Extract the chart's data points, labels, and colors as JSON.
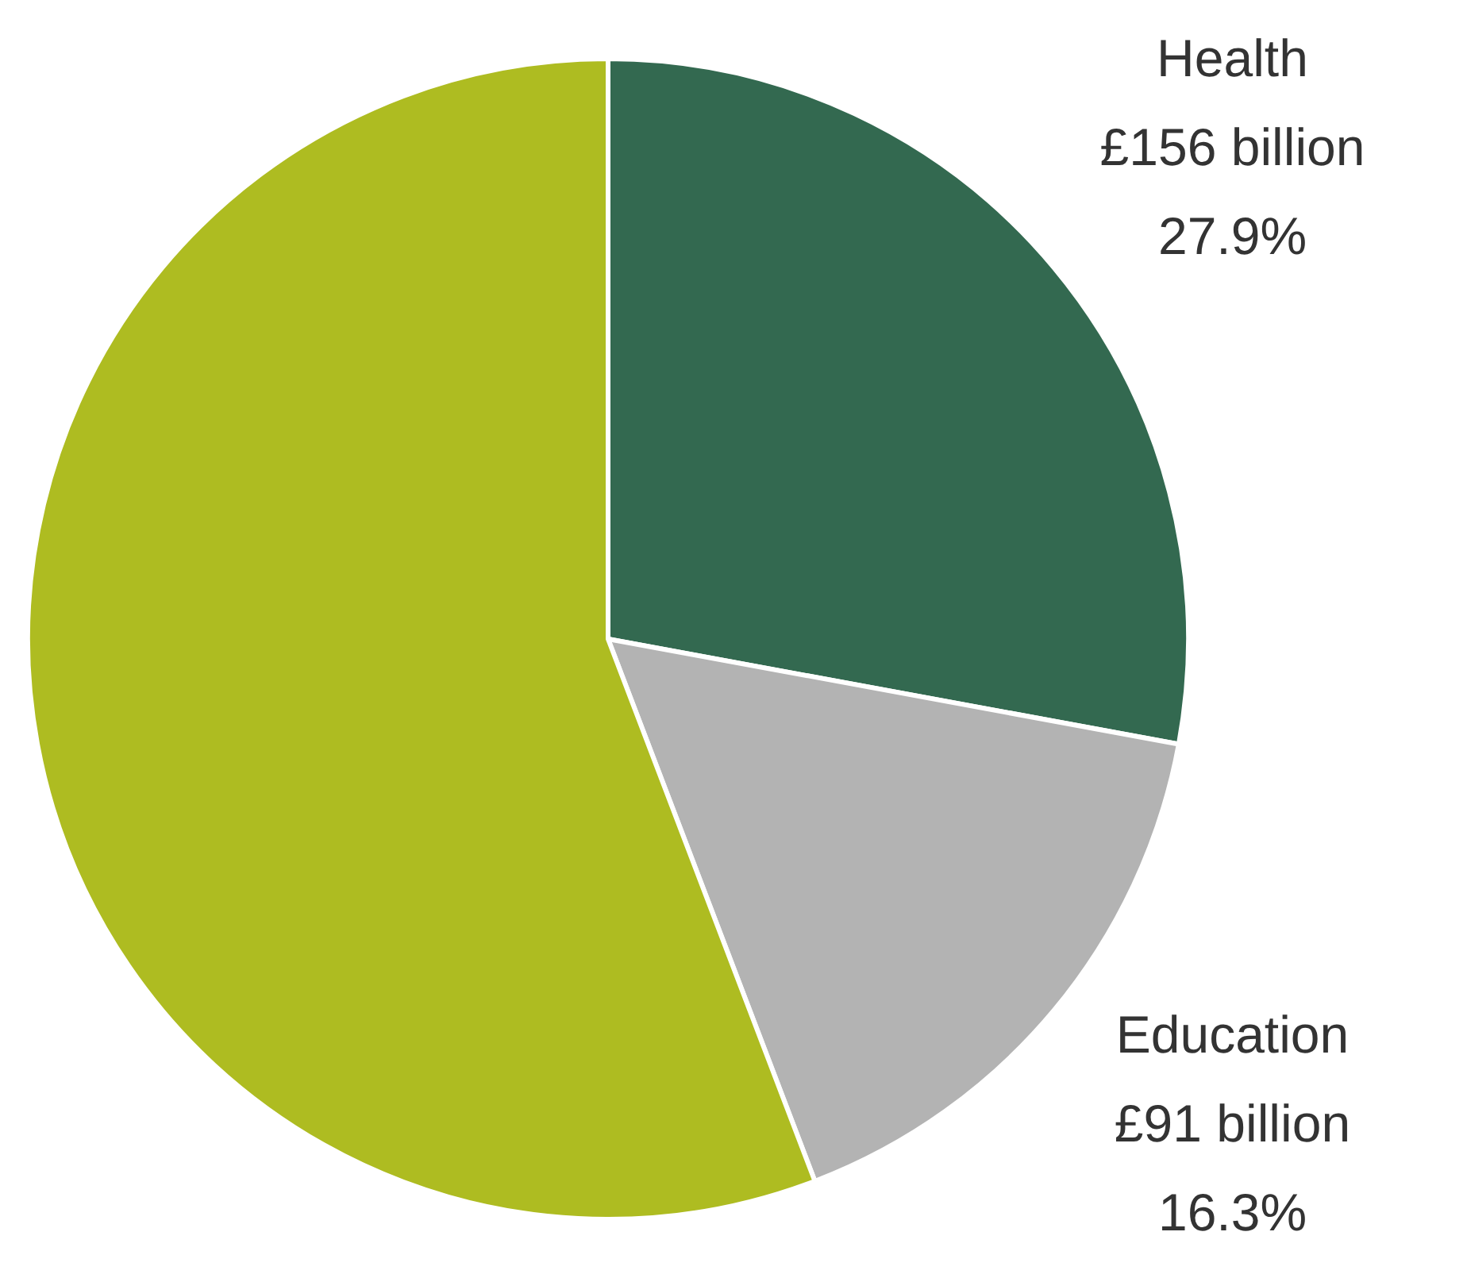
{
  "chart_data": {
    "type": "pie",
    "categories": [
      "Health",
      "Education",
      null
    ],
    "values": [
      27.9,
      16.3,
      55.8
    ],
    "colors": [
      "#336950",
      "#b3b3b3",
      "#aebc21"
    ],
    "value_labels": [
      "£156 billion\n27.9%",
      "£91 billion\n16.3%",
      null
    ],
    "legend": false
  }
}
